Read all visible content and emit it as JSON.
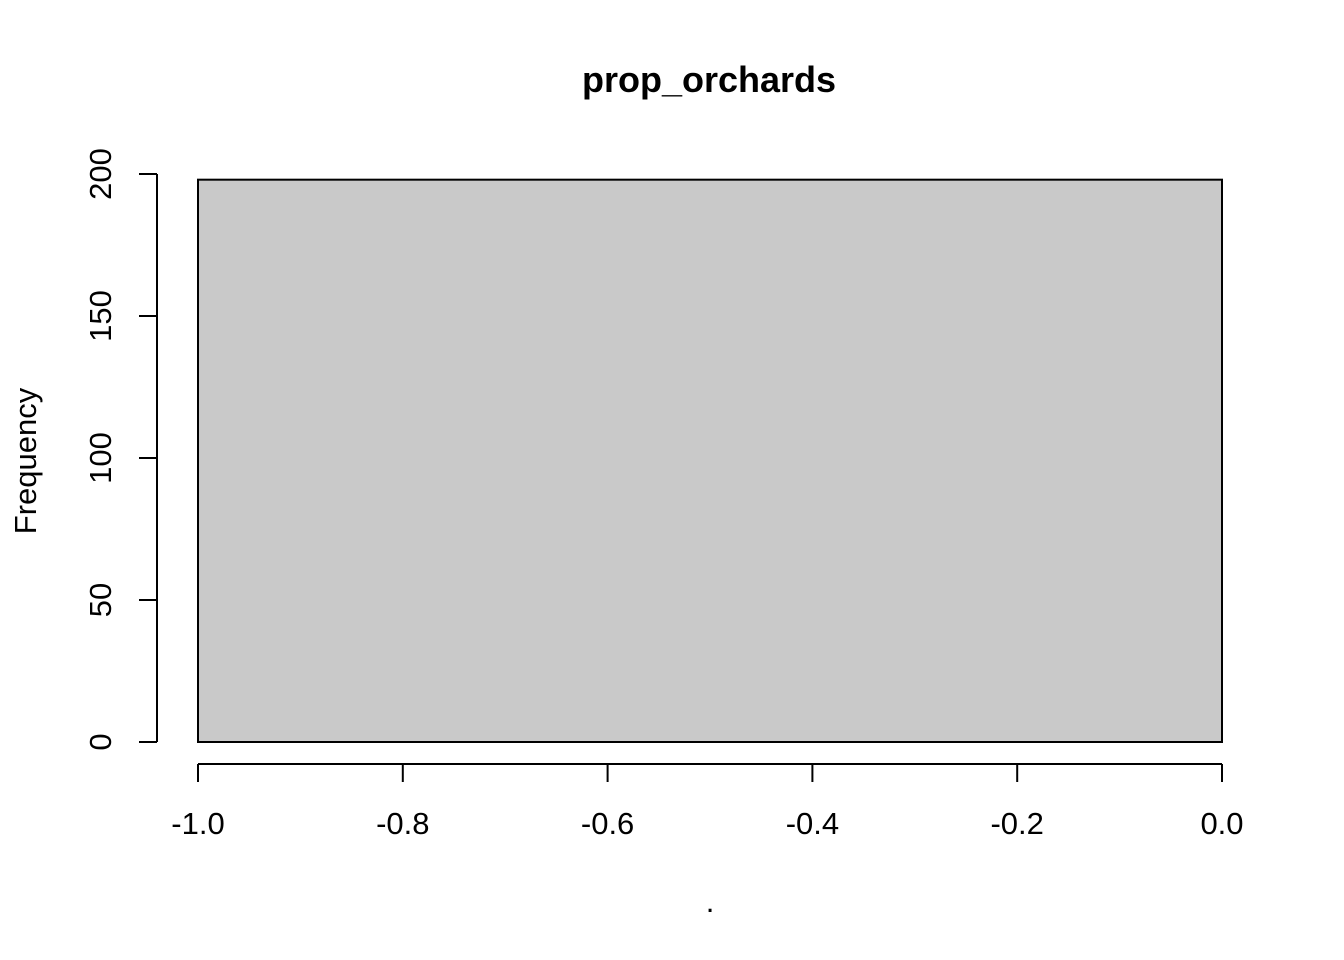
{
  "chart_data": {
    "type": "bar",
    "title": "prop_orchards",
    "xlabel": ".",
    "ylabel": "Frequency",
    "bins": [
      {
        "x_start": -1.0,
        "x_end": 0.0,
        "count": 198
      }
    ],
    "xlim": [
      -1.0,
      0.0
    ],
    "ylim": [
      0,
      200
    ],
    "x_ticks": [
      -1.0,
      -0.8,
      -0.6,
      -0.4,
      -0.2,
      0.0
    ],
    "x_tick_labels": [
      "-1.0",
      "-0.8",
      "-0.6",
      "-0.4",
      "-0.2",
      "0.0"
    ],
    "y_ticks": [
      0,
      50,
      100,
      150,
      200
    ],
    "y_tick_labels": [
      "0",
      "50",
      "100",
      "150",
      "200"
    ],
    "grid": false,
    "bar_color": "#c9c9c9",
    "edge_color": "#000000"
  }
}
